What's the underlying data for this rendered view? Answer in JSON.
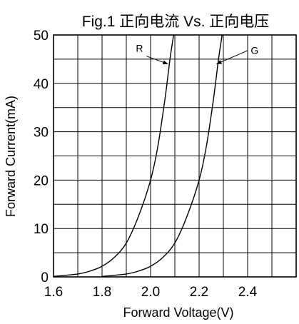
{
  "chart_data": {
    "type": "line",
    "title": "Fig.1 正向电流 Vs. 正向电压",
    "xlabel": "Forward Voltage(V)",
    "ylabel": "Forward Current(mA)",
    "xlim": [
      1.6,
      2.6
    ],
    "ylim": [
      0,
      50
    ],
    "grid": true,
    "x_ticks": [
      1.6,
      1.8,
      2.0,
      2.2,
      2.4
    ],
    "x_tick_labels": [
      "1.6",
      "1.8",
      "2.0",
      "2.2",
      "2.4"
    ],
    "y_ticks": [
      0,
      10,
      20,
      30,
      40,
      50
    ],
    "y_tick_labels": [
      "0",
      "10",
      "20",
      "30",
      "40",
      "50"
    ],
    "series": [
      {
        "name": "R",
        "points": [
          [
            1.6,
            0.1
          ],
          [
            1.7,
            0.6
          ],
          [
            1.75,
            1.2
          ],
          [
            1.8,
            2.2
          ],
          [
            1.85,
            4.0
          ],
          [
            1.9,
            7.0
          ],
          [
            1.95,
            12.5
          ],
          [
            2.0,
            20.0
          ],
          [
            2.03,
            27.0
          ],
          [
            2.06,
            37.0
          ],
          [
            2.08,
            45.0
          ],
          [
            2.095,
            50.0
          ]
        ]
      },
      {
        "name": "G",
        "points": [
          [
            1.8,
            0.1
          ],
          [
            1.9,
            0.6
          ],
          [
            1.95,
            1.2
          ],
          [
            2.0,
            2.2
          ],
          [
            2.05,
            4.0
          ],
          [
            2.1,
            7.0
          ],
          [
            2.15,
            12.5
          ],
          [
            2.2,
            20.0
          ],
          [
            2.23,
            27.0
          ],
          [
            2.26,
            37.0
          ],
          [
            2.28,
            45.0
          ],
          [
            2.295,
            50.0
          ]
        ]
      }
    ],
    "annotations": [
      {
        "text": "R",
        "series": "R"
      },
      {
        "text": "G",
        "series": "G"
      }
    ],
    "colors": {
      "line": "#000000",
      "grid": "#000000",
      "background": "#ffffff"
    }
  }
}
